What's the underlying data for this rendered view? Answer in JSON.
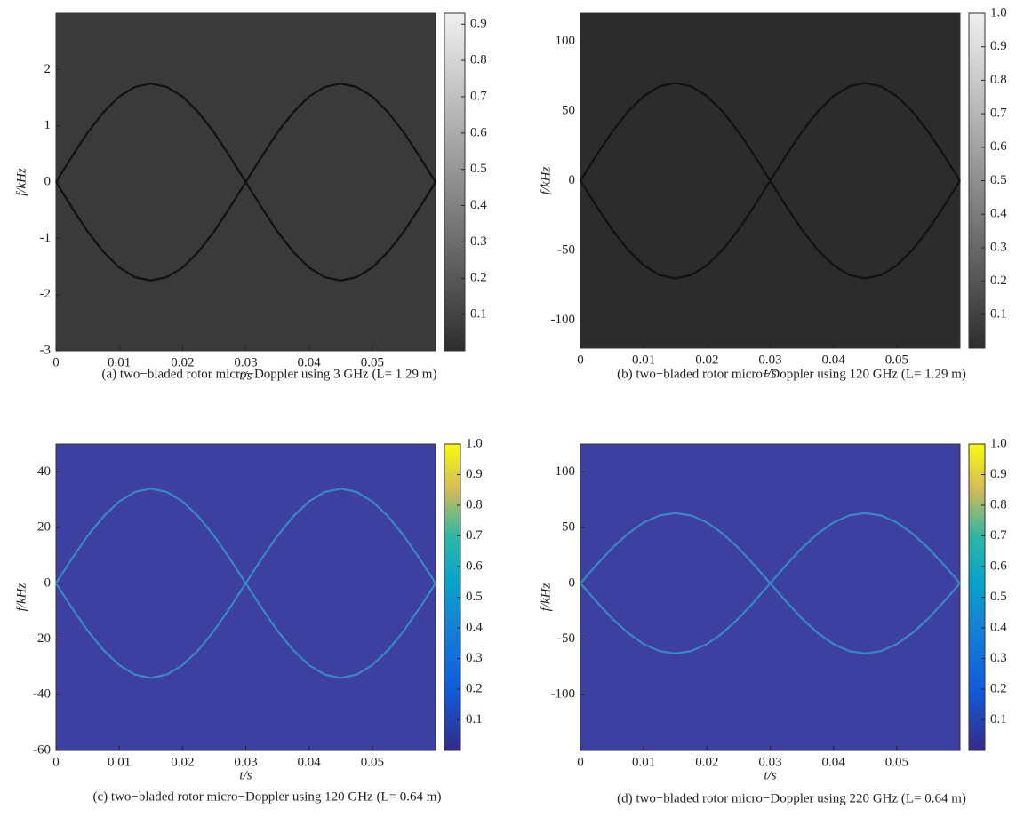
{
  "chart_data": [
    {
      "type": "spectrogram",
      "colormap": "gray",
      "background": "#3a3a3a",
      "caption": "(a) two−bladed rotor micro−Doppler using 3 GHz (L= 1.29 m)",
      "xlabel": "t/s",
      "ylabel": "f/kHz",
      "xlim": [
        0,
        0.06
      ],
      "ylim": [
        -3,
        3
      ],
      "xticks": [
        0,
        0.01,
        0.02,
        0.03,
        0.04,
        0.05
      ],
      "yticks": [
        -3,
        -2,
        -1,
        0,
        1,
        2
      ],
      "clim": [
        0,
        0.93
      ],
      "cticks": [
        0.1,
        0.2,
        0.3,
        0.4,
        0.5,
        0.6,
        0.7,
        0.8,
        0.9
      ],
      "x": [
        0,
        0.0025,
        0.005,
        0.0075,
        0.01,
        0.0125,
        0.015,
        0.0175,
        0.02,
        0.0225,
        0.025,
        0.0275,
        0.03,
        0.0325,
        0.035,
        0.0375,
        0.04,
        0.0425,
        0.045,
        0.0475,
        0.05,
        0.0525,
        0.055,
        0.0575,
        0.06
      ],
      "series": [
        {
          "color": "#111",
          "values": [
            0,
            0.45,
            0.88,
            1.24,
            1.52,
            1.69,
            1.75,
            1.69,
            1.52,
            1.24,
            0.88,
            0.45,
            0,
            0.45,
            0.88,
            1.24,
            1.52,
            1.69,
            1.75,
            1.69,
            1.52,
            1.24,
            0.88,
            0.45,
            0
          ]
        },
        {
          "color": "#111",
          "values": [
            0,
            -0.45,
            -0.88,
            -1.24,
            -1.52,
            -1.69,
            -1.75,
            -1.69,
            -1.52,
            -1.24,
            -0.88,
            -0.45,
            0,
            -0.45,
            -0.88,
            -1.24,
            -1.52,
            -1.69,
            -1.75,
            -1.69,
            -1.52,
            -1.24,
            -0.88,
            -0.45,
            0
          ]
        }
      ]
    },
    {
      "type": "spectrogram",
      "colormap": "gray",
      "background": "#2c2c2c",
      "caption": "(b) two−bladed rotor micro−Doppler using 120 GHz (L= 1.29 m)",
      "xlabel": "t/s",
      "ylabel": "f/kHz",
      "xlim": [
        0,
        0.06
      ],
      "ylim": [
        -120,
        120
      ],
      "xticks": [
        0,
        0.01,
        0.02,
        0.03,
        0.04,
        0.05
      ],
      "yticks": [
        -100,
        -50,
        0,
        50,
        100
      ],
      "clim": [
        0,
        1
      ],
      "cticks": [
        0.1,
        0.2,
        0.3,
        0.4,
        0.5,
        0.6,
        0.7,
        0.8,
        0.9,
        {
          "value": 1,
          "label": "1.0"
        }
      ],
      "x": [
        0,
        0.0025,
        0.005,
        0.0075,
        0.01,
        0.0125,
        0.015,
        0.0175,
        0.02,
        0.0225,
        0.025,
        0.0275,
        0.03,
        0.0325,
        0.035,
        0.0375,
        0.04,
        0.0425,
        0.045,
        0.0475,
        0.05,
        0.0525,
        0.055,
        0.0575,
        0.06
      ],
      "series": [
        {
          "color": "#111",
          "values": [
            0,
            18.1,
            35,
            49.5,
            60.6,
            67.6,
            70,
            67.6,
            60.6,
            49.5,
            35,
            18.1,
            0,
            18.1,
            35,
            49.5,
            60.6,
            67.6,
            70,
            67.6,
            60.6,
            49.5,
            35,
            18.1,
            0
          ]
        },
        {
          "color": "#111",
          "values": [
            0,
            -18.1,
            -35,
            -49.5,
            -60.6,
            -67.6,
            -70,
            -67.6,
            -60.6,
            -49.5,
            -35,
            -18.1,
            0,
            -18.1,
            -35,
            -49.5,
            -60.6,
            -67.6,
            -70,
            -67.6,
            -60.6,
            -49.5,
            -35,
            -18.1,
            0
          ]
        }
      ]
    },
    {
      "type": "spectrogram",
      "colormap": "parula",
      "background": "#3d40a0",
      "caption": "(c) two−bladed rotor micro−Doppler using 120 GHz (L= 0.64 m)",
      "xlabel": "t/s",
      "ylabel": "f/kHz",
      "xlim": [
        0,
        0.06
      ],
      "ylim": [
        -60,
        50
      ],
      "xticks": [
        0,
        0.01,
        0.02,
        0.03,
        0.04,
        0.05
      ],
      "yticks": [
        -60,
        -40,
        -20,
        0,
        20,
        40
      ],
      "clim": [
        0,
        1
      ],
      "cticks": [
        0.1,
        0.2,
        0.3,
        0.4,
        0.5,
        0.6,
        0.7,
        0.8,
        0.9,
        {
          "value": 1,
          "label": "1.0"
        }
      ],
      "x": [
        0,
        0.0025,
        0.005,
        0.0075,
        0.01,
        0.0125,
        0.015,
        0.0175,
        0.02,
        0.0225,
        0.025,
        0.0275,
        0.03,
        0.0325,
        0.035,
        0.0375,
        0.04,
        0.0425,
        0.045,
        0.0475,
        0.05,
        0.0525,
        0.055,
        0.0575,
        0.06
      ],
      "series": [
        {
          "color": "#3a86c8",
          "values": [
            0,
            8.8,
            17,
            24,
            29.4,
            32.8,
            34,
            32.8,
            29.4,
            24,
            17,
            8.8,
            0,
            8.8,
            17,
            24,
            29.4,
            32.8,
            34,
            32.8,
            29.4,
            24,
            17,
            8.8,
            0
          ]
        },
        {
          "color": "#3a86c8",
          "values": [
            0,
            -8.8,
            -17,
            -24,
            -29.4,
            -32.8,
            -34,
            -32.8,
            -29.4,
            -24,
            -17,
            -8.8,
            0,
            -8.8,
            -17,
            -24,
            -29.4,
            -32.8,
            -34,
            -32.8,
            -29.4,
            -24,
            -17,
            -8.8,
            0
          ]
        }
      ]
    },
    {
      "type": "spectrogram",
      "colormap": "parula",
      "background": "#3d40a0",
      "caption": "(d) two−bladed rotor micro−Doppler using 220 GHz (L= 0.64 m)",
      "xlabel": "t/s",
      "ylabel": "f/kHz",
      "xlim": [
        0,
        0.06
      ],
      "ylim": [
        -150,
        125
      ],
      "xticks": [
        0,
        0.01,
        0.02,
        0.03,
        0.04,
        0.05
      ],
      "yticks": [
        -100,
        -50,
        0,
        50,
        100
      ],
      "clim": [
        0,
        1
      ],
      "cticks": [
        0.1,
        0.2,
        0.3,
        0.4,
        0.5,
        0.6,
        0.7,
        0.8,
        0.9,
        {
          "value": 1,
          "label": "1.0"
        }
      ],
      "x": [
        0,
        0.0025,
        0.005,
        0.0075,
        0.01,
        0.0125,
        0.015,
        0.0175,
        0.02,
        0.0225,
        0.025,
        0.0275,
        0.03,
        0.0325,
        0.035,
        0.0375,
        0.04,
        0.0425,
        0.045,
        0.0475,
        0.05,
        0.0525,
        0.055,
        0.0575,
        0.06
      ],
      "series": [
        {
          "color": "#3a86c8",
          "values": [
            0,
            16.3,
            31.5,
            44.5,
            54.6,
            60.9,
            63,
            60.9,
            54.6,
            44.5,
            31.5,
            16.3,
            0,
            16.3,
            31.5,
            44.5,
            54.6,
            60.9,
            63,
            60.9,
            54.6,
            44.5,
            31.5,
            16.3,
            0
          ]
        },
        {
          "color": "#3a86c8",
          "values": [
            0,
            -16.3,
            -31.5,
            -44.5,
            -54.6,
            -60.9,
            -63,
            -60.9,
            -54.6,
            -44.5,
            -31.5,
            -16.3,
            0,
            -16.3,
            -31.5,
            -44.5,
            -54.6,
            -60.9,
            -63,
            -60.9,
            -54.6,
            -44.5,
            -31.5,
            -16.3,
            0
          ]
        }
      ]
    }
  ]
}
